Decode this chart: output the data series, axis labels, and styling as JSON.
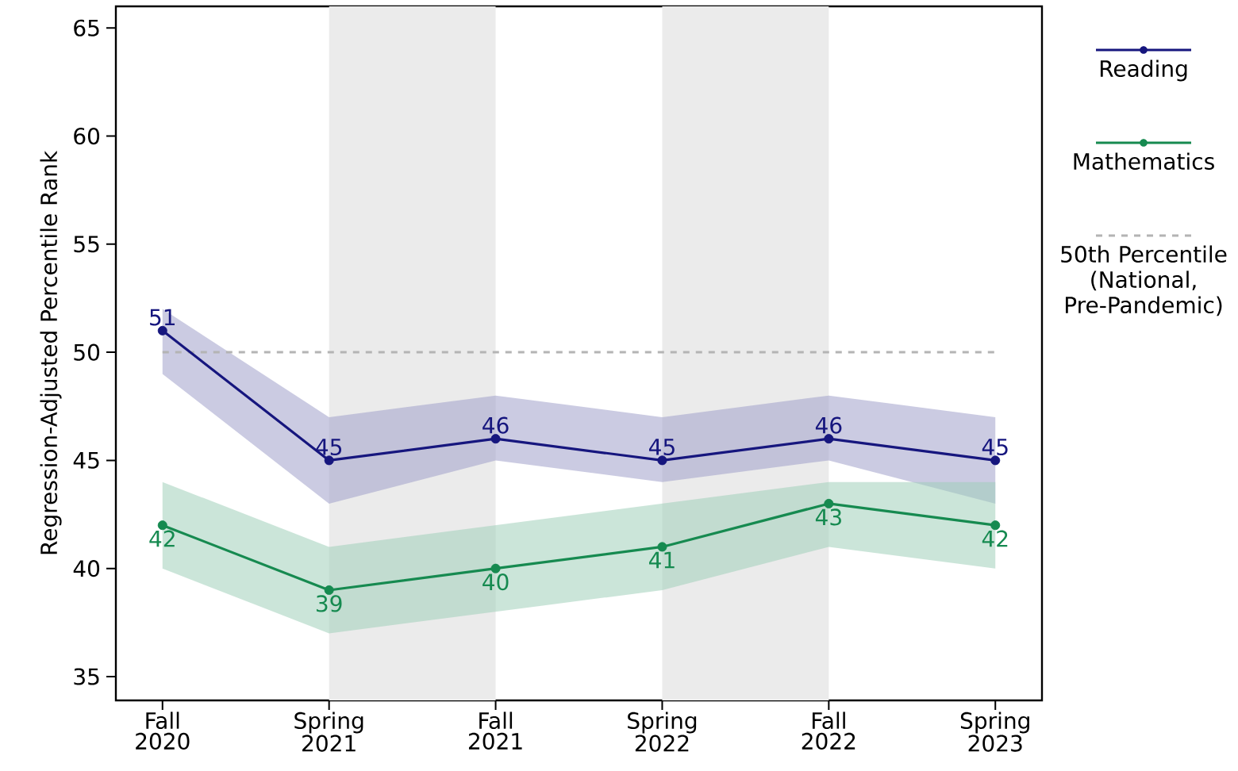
{
  "chart_data": {
    "type": "line",
    "ylabel": "Regression-Adjusted Percentile Rank",
    "categories": [
      "Fall 2020",
      "Spring 2021",
      "Fall 2021",
      "Spring 2022",
      "Fall 2022",
      "Spring 2023"
    ],
    "ylim": [
      33.9,
      66
    ],
    "yticks": [
      35,
      40,
      45,
      50,
      55,
      60,
      65
    ],
    "series": [
      {
        "name": "Reading",
        "color": "#16167e",
        "values": [
          51,
          45,
          46,
          45,
          46,
          45
        ],
        "lower": [
          49,
          43,
          45,
          44,
          45,
          43
        ],
        "upper": [
          52,
          47,
          48,
          47,
          48,
          47
        ]
      },
      {
        "name": "Mathematics",
        "color": "#168a50",
        "values": [
          42,
          39,
          40,
          41,
          43,
          42
        ],
        "lower": [
          40,
          37,
          38,
          39,
          41,
          40
        ],
        "upper": [
          44,
          41,
          42,
          43,
          44,
          44
        ]
      }
    ],
    "ref_lines": [
      {
        "axis": "y",
        "value": 50,
        "label": "50th Percentile (National, Pre-Pandemic)",
        "color": "#b4b4b4",
        "line_style": "dashed"
      }
    ],
    "bands": [
      {
        "axis": "x",
        "from": "Spring 2021",
        "to": "Fall 2021",
        "color": "#ebebeb"
      },
      {
        "axis": "x",
        "from": "Spring 2022",
        "to": "Fall 2022",
        "color": "#ebebeb"
      }
    ],
    "data_labels": true,
    "marker": "circle",
    "line_style": "solid",
    "legend": "right"
  }
}
